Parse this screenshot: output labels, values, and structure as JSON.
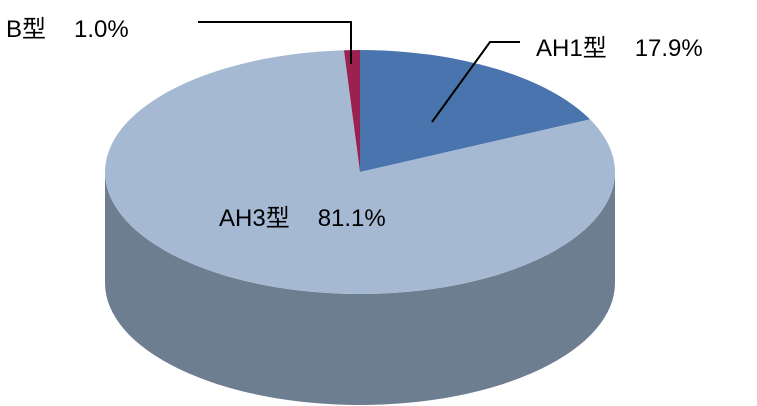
{
  "chart_data": {
    "type": "pie",
    "style": "3d",
    "slices": [
      {
        "name": "AH1型",
        "value": 17.9,
        "value_label": "17.9%",
        "color": "#4a74ad"
      },
      {
        "name": "AH3型",
        "value": 81.1,
        "value_label": "81.1%",
        "color": "#a6b9d3"
      },
      {
        "name": "B型",
        "value": 1.0,
        "value_label": "1.0%",
        "color": "#9b2150"
      }
    ],
    "side_color": "#6d7e90"
  }
}
